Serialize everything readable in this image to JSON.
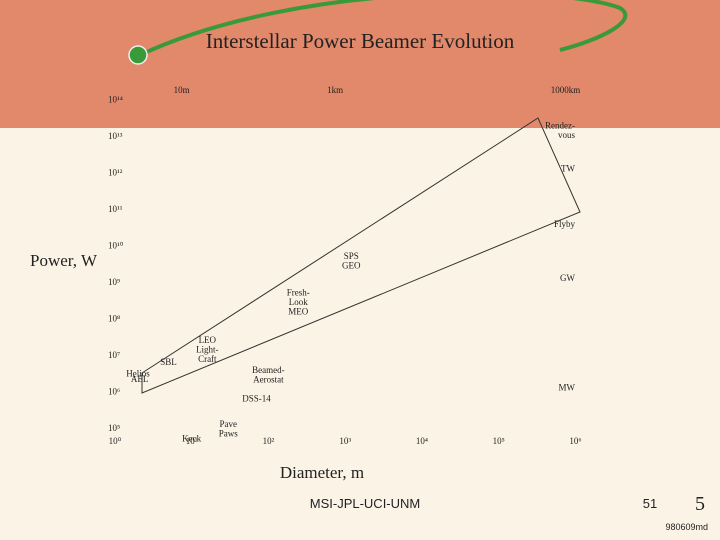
{
  "chart_data": {
    "type": "scatter",
    "title": "Interstellar Power Beamer Evolution",
    "x_label": "Diameter, m",
    "y_label": "Power, W",
    "log_x": true,
    "log_y": true,
    "xlim": [
      0.7,
      1500000
    ],
    "ylim": [
      30000,
      300000000000000
    ],
    "xticks": [
      {
        "value": 1,
        "label": "10⁰"
      },
      {
        "value": 10,
        "label": "10¹"
      },
      {
        "value": 100,
        "label": "10²"
      },
      {
        "value": 1000,
        "label": "10³"
      },
      {
        "value": 10000,
        "label": "10⁴"
      },
      {
        "value": 100000,
        "label": "10⁵"
      },
      {
        "value": 1000000,
        "label": "10⁶"
      }
    ],
    "yticks": [
      {
        "value": 100000,
        "label": "10⁵"
      },
      {
        "value": 1000000,
        "label": "10⁶"
      },
      {
        "value": 10000000,
        "label": "10⁷"
      },
      {
        "value": 100000000,
        "label": "10⁸"
      },
      {
        "value": 1000000000,
        "label": "10⁹"
      },
      {
        "value": 10000000000,
        "label": "10¹⁰"
      },
      {
        "value": 100000000000,
        "label": "10¹¹"
      },
      {
        "value": 1000000000000,
        "label": "10¹²"
      },
      {
        "value": 10000000000000,
        "label": "10¹³"
      },
      {
        "value": 100000000000000,
        "label": "10¹⁴"
      }
    ],
    "top_labels": [
      {
        "value": 10,
        "label": "10m"
      },
      {
        "value": 1000,
        "label": "1km"
      },
      {
        "value": 1000000,
        "label": "1000km"
      }
    ],
    "right_labels": [
      {
        "value": 15000000000000,
        "label": "Rendez-\nvous"
      },
      {
        "value": 1000000000000,
        "label": "TW"
      },
      {
        "value": 30000000000,
        "label": "Flyby"
      },
      {
        "value": 1000000000,
        "label": "GW"
      },
      {
        "value": 1000000,
        "label": "MW"
      }
    ],
    "points": [
      {
        "label": "SPS\nGEO",
        "x": 1200,
        "y": 4000000000
      },
      {
        "label": "Fresh-\nLook\nMEO",
        "x": 245,
        "y": 400000000
      },
      {
        "label": "LEO\nLight-\nCraft",
        "x": 16,
        "y": 20000000
      },
      {
        "label": "SBL",
        "x": 5,
        "y": 5000000
      },
      {
        "label": "Helios",
        "x": 2,
        "y": 2400000
      },
      {
        "label": "AEL",
        "x": 2.1,
        "y": 1700000
      },
      {
        "label": "Beamed-\nAerostat",
        "x": 100,
        "y": 3000000
      },
      {
        "label": "DSS-14",
        "x": 70,
        "y": 500000
      },
      {
        "label": "Pave\nPaws",
        "x": 30,
        "y": 100000
      },
      {
        "label": "Keck",
        "x": 10,
        "y": 40000
      }
    ]
  },
  "footer": {
    "left": "MSI-JPL-UCI-UNM",
    "page": "51",
    "slide": "5",
    "code": "980609md"
  }
}
